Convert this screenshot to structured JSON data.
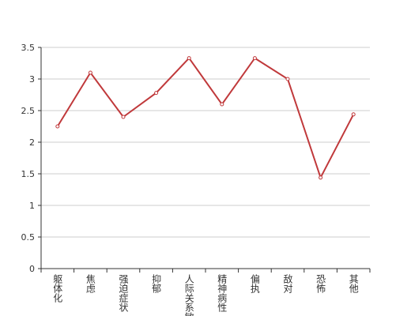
{
  "chart_data": {
    "type": "line",
    "categories": [
      "躯体化",
      "焦虑",
      "强迫症状",
      "抑郁",
      "人际关系敏感",
      "精神病性",
      "偏执",
      "敌对",
      "恐怖",
      "其他"
    ],
    "values": [
      2.25,
      3.1,
      2.4,
      2.78,
      3.33,
      2.6,
      3.33,
      3.0,
      1.44,
      2.44
    ],
    "color": "#c0393b",
    "ylim": [
      0,
      3.5
    ],
    "yticks": [
      0,
      0.5,
      1,
      1.5,
      2,
      2.5,
      3,
      3.5
    ],
    "grid": true
  }
}
